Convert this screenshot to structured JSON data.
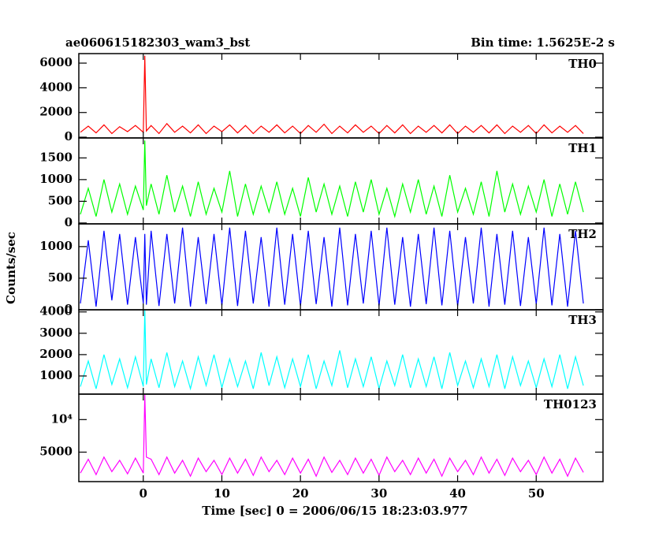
{
  "chart_data": {
    "type": "line",
    "title": "ae060615182303_wam3_bst",
    "subtitle": "Bin time: 1.5625E-2 s",
    "ylabel": "Counts/sec",
    "xlabel": "Time [sec] 0 = 2006/06/15 18:23:03.977",
    "xlim": [
      -8.2,
      58.5
    ],
    "xticks": [
      0,
      10,
      20,
      30,
      40,
      50
    ],
    "x": [
      -8,
      -7,
      -6,
      -5,
      -4,
      -3,
      -2,
      -1,
      0,
      0.2,
      0.4,
      1,
      2,
      3,
      4,
      5,
      6,
      7,
      8,
      9,
      10,
      11,
      12,
      13,
      14,
      15,
      16,
      17,
      18,
      19,
      20,
      21,
      22,
      23,
      24,
      25,
      26,
      27,
      28,
      29,
      30,
      31,
      32,
      33,
      34,
      35,
      36,
      37,
      38,
      39,
      40,
      41,
      42,
      43,
      44,
      45,
      46,
      47,
      48,
      49,
      50,
      51,
      52,
      53,
      54,
      55,
      56
    ],
    "panels": [
      {
        "name": "TH0",
        "color": "#ff0000",
        "ylim": [
          -60,
          6770
        ],
        "yticks": [
          0,
          2000,
          4000,
          6000
        ],
        "log": false,
        "values": [
          400,
          900,
          350,
          1000,
          300,
          850,
          450,
          950,
          400,
          6600,
          500,
          950,
          300,
          1100,
          400,
          900,
          350,
          1000,
          300,
          900,
          450,
          1000,
          350,
          950,
          300,
          900,
          400,
          1000,
          350,
          900,
          300,
          950,
          400,
          1050,
          300,
          900,
          350,
          1000,
          400,
          900,
          300,
          950,
          350,
          1000,
          300,
          900,
          400,
          950,
          350,
          1000,
          300,
          900,
          400,
          950,
          350,
          1000,
          300,
          900,
          400,
          950,
          300,
          1000,
          350,
          900,
          400,
          950,
          300
        ]
      },
      {
        "name": "TH1",
        "color": "#00ff00",
        "ylim": [
          -20,
          1960
        ],
        "yticks": [
          0,
          500,
          1000,
          1500
        ],
        "log": false,
        "values": [
          200,
          800,
          150,
          1000,
          250,
          900,
          200,
          850,
          300,
          1900,
          400,
          900,
          200,
          1100,
          250,
          850,
          150,
          950,
          200,
          800,
          250,
          1200,
          150,
          900,
          200,
          850,
          250,
          950,
          200,
          800,
          150,
          1050,
          250,
          900,
          200,
          850,
          150,
          950,
          250,
          1000,
          200,
          800,
          150,
          900,
          250,
          1000,
          200,
          850,
          150,
          1100,
          250,
          800,
          200,
          950,
          150,
          1200,
          250,
          900,
          200,
          850,
          250,
          1000,
          150,
          900,
          200,
          950,
          250
        ]
      },
      {
        "name": "TH2",
        "color": "#0000ff",
        "ylim": [
          0,
          1360
        ],
        "yticks": [
          0,
          500,
          1000
        ],
        "log": false,
        "values": [
          100,
          1100,
          50,
          1250,
          150,
          1200,
          80,
          1150,
          100,
          1200,
          80,
          1250,
          60,
          1200,
          100,
          1300,
          50,
          1150,
          90,
          1200,
          70,
          1300,
          60,
          1250,
          100,
          1150,
          50,
          1300,
          80,
          1200,
          60,
          1250,
          90,
          1150,
          50,
          1300,
          70,
          1200,
          100,
          1250,
          60,
          1300,
          80,
          1150,
          50,
          1200,
          90,
          1300,
          70,
          1250,
          60,
          1150,
          100,
          1300,
          50,
          1200,
          80,
          1250,
          60,
          1150,
          90,
          1300,
          70,
          1200,
          50,
          1250,
          100
        ]
      },
      {
        "name": "TH3",
        "color": "#00ffff",
        "ylim": [
          150,
          4100
        ],
        "yticks": [
          1000,
          2000,
          3000,
          4000
        ],
        "log": false,
        "values": [
          500,
          1700,
          400,
          2000,
          600,
          1800,
          450,
          1900,
          500,
          4100,
          600,
          1800,
          450,
          2100,
          500,
          1700,
          400,
          1900,
          550,
          2000,
          450,
          1800,
          500,
          1700,
          400,
          2100,
          550,
          1900,
          450,
          1800,
          500,
          2000,
          400,
          1700,
          550,
          2200,
          450,
          1800,
          500,
          1900,
          400,
          1700,
          550,
          2000,
          450,
          1800,
          500,
          1900,
          400,
          2100,
          550,
          1700,
          450,
          1800,
          500,
          2000,
          400,
          1900,
          550,
          1700,
          450,
          1800,
          500,
          2000,
          400,
          1900,
          550
        ]
      },
      {
        "name": "TH0123",
        "color": "#ff00ff",
        "ylim": [
          2670,
          17200
        ],
        "yticks": [
          {
            "value": 5000,
            "label": "5000"
          },
          {
            "value": 10000,
            "label": "10⁴"
          }
        ],
        "log": true,
        "values": [
          3200,
          4300,
          3100,
          4500,
          3300,
          4200,
          3150,
          4400,
          3200,
          17000,
          4500,
          4300,
          3100,
          4500,
          3200,
          4200,
          3000,
          4400,
          3300,
          4200,
          3100,
          4400,
          3200,
          4300,
          3050,
          4500,
          3300,
          4200,
          3100,
          4400,
          3200,
          4300,
          3000,
          4500,
          3250,
          4200,
          3100,
          4400,
          3200,
          4300,
          3050,
          4500,
          3300,
          4200,
          3100,
          4400,
          3200,
          4300,
          3000,
          4400,
          3300,
          4200,
          3100,
          4500,
          3200,
          4300,
          3050,
          4400,
          3300,
          4200,
          3100,
          4500,
          3200,
          4300,
          3000,
          4400,
          3250
        ]
      }
    ]
  }
}
